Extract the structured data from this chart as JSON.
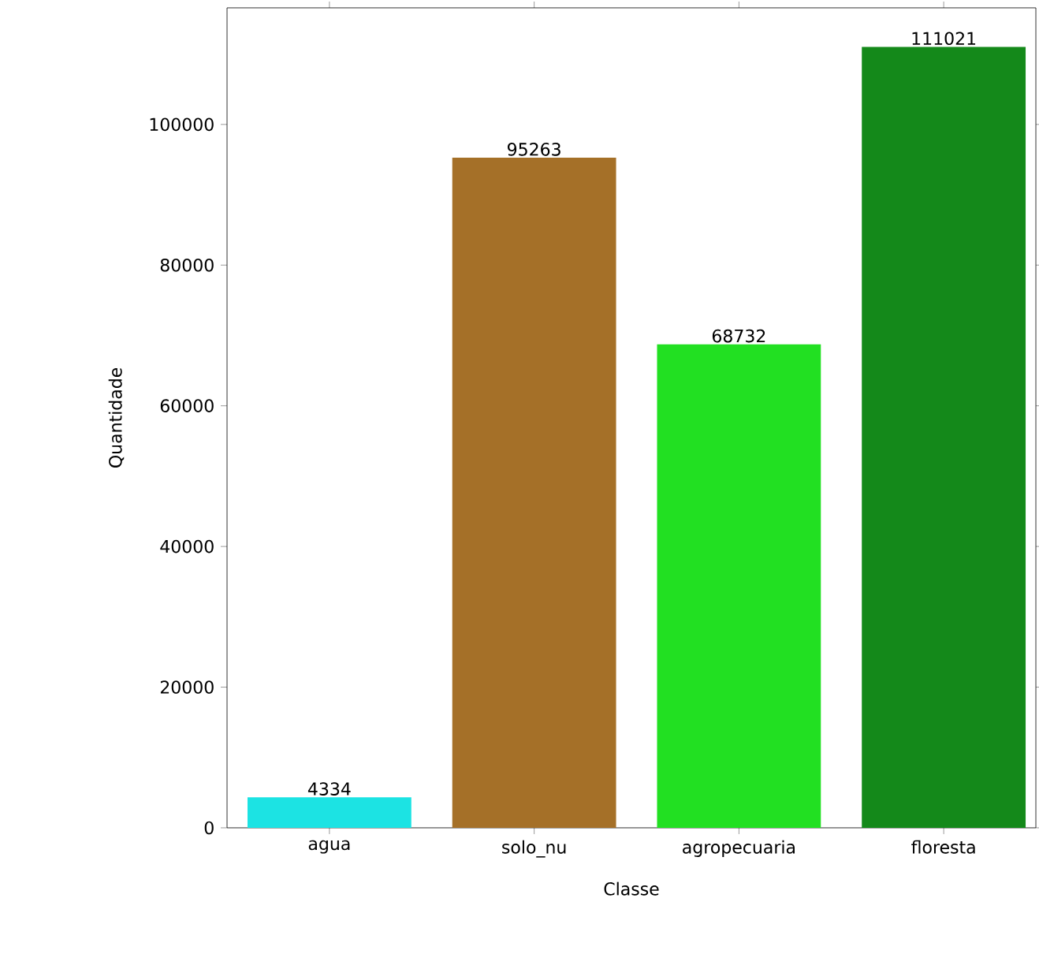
{
  "chart_data": {
    "type": "bar",
    "xlabel": "Classe",
    "ylabel": "Quantidade",
    "categories": [
      "agua",
      "solo_nu",
      "agropecuaria",
      "floresta"
    ],
    "values": [
      4334,
      95263,
      68732,
      111021
    ],
    "colors": [
      "#1ce3e3",
      "#a57028",
      "#22e022",
      "#14891a"
    ],
    "ylim": [
      0,
      116572
    ],
    "yticks": [
      0,
      20000,
      40000,
      60000,
      80000,
      100000
    ],
    "data_labels": true
  }
}
